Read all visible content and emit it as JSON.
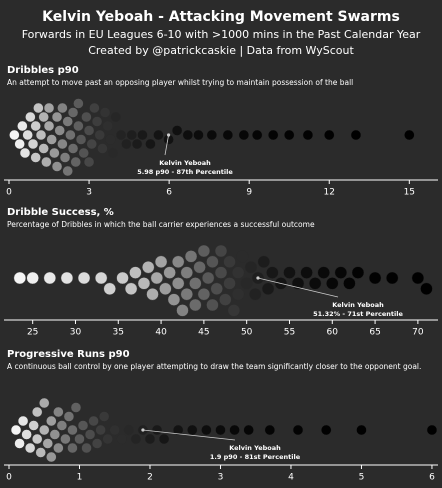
{
  "header": {
    "title": "Kelvin Yeboah - Attacking Movement Swarms",
    "subtitle": "Forwards in EU Leagues 6-10 with >1000 mins in the Past Calendar Year",
    "credit": "Created by @patrickcaskie | Data from WyScout"
  },
  "chart_data": [
    {
      "type": "swarm",
      "title": "Dribbles p90",
      "subtitle": "An attempt to move past an opposing player whilst trying to maintain possession of the ball",
      "xlim": [
        0,
        16
      ],
      "xticks": [
        0,
        3,
        6,
        9,
        12,
        15
      ],
      "values": [
        0.2,
        0.4,
        0.5,
        0.6,
        0.7,
        0.8,
        0.9,
        1.0,
        1.0,
        1.1,
        1.2,
        1.3,
        1.3,
        1.4,
        1.5,
        1.5,
        1.6,
        1.7,
        1.8,
        1.8,
        1.9,
        2.0,
        2.0,
        2.1,
        2.2,
        2.2,
        2.3,
        2.4,
        2.4,
        2.5,
        2.6,
        2.6,
        2.7,
        2.8,
        2.9,
        3.0,
        3.0,
        3.1,
        3.2,
        3.3,
        3.4,
        3.5,
        3.6,
        3.7,
        3.8,
        3.9,
        4.0,
        4.2,
        4.4,
        4.6,
        4.8,
        5.0,
        5.3,
        5.6,
        5.98,
        6.3,
        6.7,
        7.1,
        7.6,
        8.2,
        8.8,
        9.3,
        9.9,
        10.5,
        11.2,
        12.0,
        13.0,
        15.0
      ],
      "highlight": 5.98,
      "annotation": [
        "Kelvin Yeboah",
        "5.98 p90 - 87th Percentile"
      ]
    },
    {
      "type": "swarm",
      "title": "Dribble Success, %",
      "subtitle": "Percentage of Dribbles in which the ball carrier experiences a successful outcome",
      "xlim": [
        22,
        72
      ],
      "xticks": [
        25,
        30,
        35,
        40,
        45,
        50,
        55,
        60,
        65,
        70
      ],
      "values": [
        23.5,
        25,
        27,
        29,
        31,
        33,
        34,
        35.5,
        36.5,
        37,
        38,
        38.5,
        39,
        39.5,
        40,
        40.5,
        41,
        41.5,
        42,
        42,
        42.5,
        43,
        43,
        43.5,
        44,
        44,
        44.5,
        45,
        45,
        45.5,
        46,
        46,
        46.5,
        47,
        47,
        47.5,
        48,
        48,
        48.5,
        49,
        49,
        49.5,
        50,
        50.5,
        51,
        51.32,
        52,
        52.5,
        53,
        54,
        55,
        56,
        57,
        58,
        59,
        60,
        61,
        62,
        63,
        65,
        67,
        70,
        71
      ],
      "highlight": 51.32,
      "annotation": [
        "Kelvin Yeboah",
        "51.32% - 71st Percentile"
      ]
    },
    {
      "type": "swarm",
      "title": "Progressive Runs p90",
      "subtitle": "A continuous ball control by one player attempting to draw the team significantly closer to the opponent goal.",
      "xlim": [
        0,
        6.1
      ],
      "xticks": [
        0,
        1,
        2,
        3,
        4,
        5,
        6
      ],
      "values": [
        0.1,
        0.15,
        0.2,
        0.25,
        0.3,
        0.35,
        0.4,
        0.4,
        0.45,
        0.5,
        0.5,
        0.55,
        0.6,
        0.6,
        0.65,
        0.7,
        0.7,
        0.75,
        0.8,
        0.85,
        0.9,
        0.9,
        0.95,
        1.0,
        1.05,
        1.1,
        1.15,
        1.2,
        1.25,
        1.3,
        1.35,
        1.4,
        1.5,
        1.6,
        1.7,
        1.8,
        1.9,
        2.0,
        2.1,
        2.2,
        2.4,
        2.6,
        2.8,
        3.0,
        3.2,
        3.4,
        3.7,
        4.1,
        4.5,
        5.0,
        6.0
      ],
      "highlight": 1.9,
      "annotation": [
        "Kelvin Yeboah",
        "1.9 p90 - 81st Percentile"
      ]
    }
  ]
}
